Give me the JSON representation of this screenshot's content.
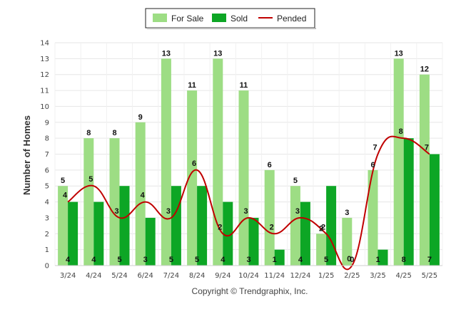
{
  "chart_data": {
    "type": "bar",
    "categories": [
      "3/24",
      "4/24",
      "5/24",
      "6/24",
      "7/24",
      "8/24",
      "9/24",
      "10/24",
      "11/24",
      "12/24",
      "1/25",
      "2/25",
      "3/25",
      "4/25",
      "5/25"
    ],
    "series": [
      {
        "name": "For Sale",
        "type": "bar",
        "color": "#9ddd84",
        "values": [
          5,
          8,
          8,
          9,
          13,
          11,
          13,
          11,
          6,
          5,
          2,
          3,
          6,
          13,
          12
        ]
      },
      {
        "name": "Sold",
        "type": "bar",
        "color": "#0da625",
        "values": [
          4,
          4,
          5,
          3,
          5,
          5,
          4,
          3,
          1,
          4,
          5,
          0,
          1,
          8,
          7
        ]
      },
      {
        "name": "Pended",
        "type": "line",
        "color": "#c00000",
        "values": [
          4,
          5,
          3,
          4,
          3,
          6,
          2,
          3,
          2,
          3,
          2,
          0,
          7,
          8,
          7
        ]
      }
    ],
    "title": "",
    "xlabel": "",
    "ylabel": "Number of Homes",
    "ylim": [
      0,
      14
    ],
    "yticks": [
      0,
      1,
      2,
      3,
      4,
      5,
      6,
      7,
      8,
      9,
      10,
      11,
      12,
      13,
      14
    ],
    "grid": true,
    "legend_position": "top-center",
    "footer": "Copyright © Trendgraphix, Inc."
  }
}
